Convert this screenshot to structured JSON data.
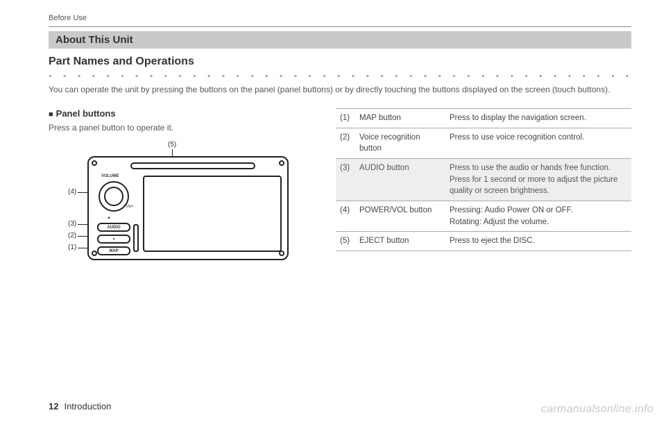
{
  "header_small": "Before Use",
  "banner": "About This Unit",
  "section_title": "Part Names and Operations",
  "intro": "You can operate the unit by pressing the buttons on the panel (panel buttons) or by directly touching the buttons displayed on the screen (touch buttons).",
  "sub_heading": "Panel buttons",
  "sub_text": "Press a panel button to operate it.",
  "diagram": {
    "labels": {
      "n1": "(1)",
      "n2": "(2)",
      "n3": "(3)",
      "n4": "(4)",
      "n5": "(5)"
    },
    "btn_audio": "AUDIO",
    "btn_map": "MAP",
    "lbl_volume": "VOLUME",
    "lbl_push": "PUSH"
  },
  "table": {
    "rows": [
      {
        "num": "(1)",
        "name": "MAP button",
        "desc": "Press to display the navigation screen."
      },
      {
        "num": "(2)",
        "name": "Voice recognition button",
        "desc": "Press to use voice recognition control."
      },
      {
        "num": "(3)",
        "name": "AUDIO button",
        "desc": "Press to use the audio or hands free function. Press for 1 second or more to adjust the picture quality or screen brightness."
      },
      {
        "num": "(4)",
        "name": "POWER/VOL button",
        "desc": "Pressing: Audio Power ON or OFF.\nRotating: Adjust the volume."
      },
      {
        "num": "(5)",
        "name": "EJECT button",
        "desc": "Press to eject the DISC."
      }
    ]
  },
  "footer": {
    "page": "12",
    "chapter": "Introduction"
  },
  "watermark": "carmanualsonline.info",
  "colors": {
    "banner_bg": "#c9c9c9",
    "text_muted": "#555555",
    "rule": "#888888",
    "table_alt": "#eeeeee",
    "watermark": "#c9c9c9"
  }
}
